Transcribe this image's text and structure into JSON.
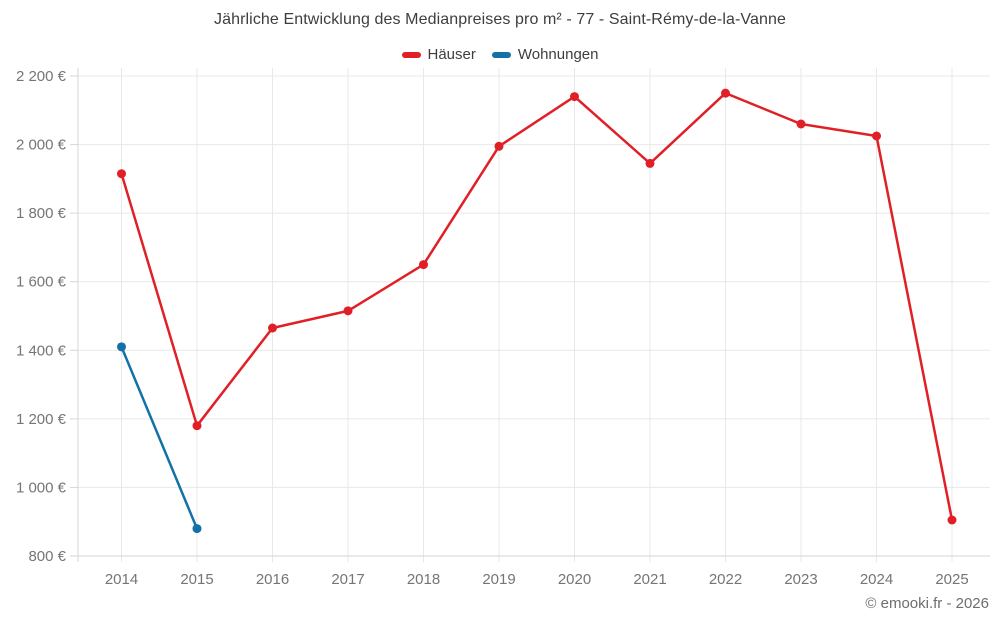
{
  "header": {
    "title": "Jährliche Entwicklung des Medianpreises pro m² - 77 - Saint-Rémy-de-la-Vanne"
  },
  "footer": {
    "copyright": "© emooki.fr - 2026"
  },
  "chart_data": {
    "type": "line",
    "title": "Jährliche Entwicklung des Medianpreises pro m² - 77 - Saint-Rémy-de-la-Vanne",
    "xlabel": "",
    "ylabel": "",
    "categories": [
      "2014",
      "2015",
      "2016",
      "2017",
      "2018",
      "2019",
      "2020",
      "2021",
      "2022",
      "2023",
      "2024",
      "2025"
    ],
    "series": [
      {
        "name": "Häuser",
        "color": "#e02026",
        "values": [
          1915,
          1180,
          1465,
          1515,
          1650,
          1995,
          2140,
          1945,
          2150,
          2060,
          2025,
          905
        ]
      },
      {
        "name": "Wohnungen",
        "color": "#1271a6",
        "values": [
          1410,
          880,
          null,
          null,
          null,
          null,
          null,
          null,
          null,
          null,
          null,
          null
        ]
      }
    ],
    "ylim": [
      800,
      2200
    ],
    "ytick_step": 200,
    "ytick_labels": [
      "800 €",
      "1 000 €",
      "1 200 €",
      "1 400 €",
      "1 600 €",
      "1 800 €",
      "2 000 €",
      "2 200 €"
    ],
    "grid": true,
    "legend_position": "top",
    "colors": {
      "grid_line": "#e8e8e8",
      "axis_line": "#d6d6d6",
      "axis_text": "#757575",
      "title_text": "#3e3e3e",
      "footer_text": "#6d6d6d"
    }
  }
}
